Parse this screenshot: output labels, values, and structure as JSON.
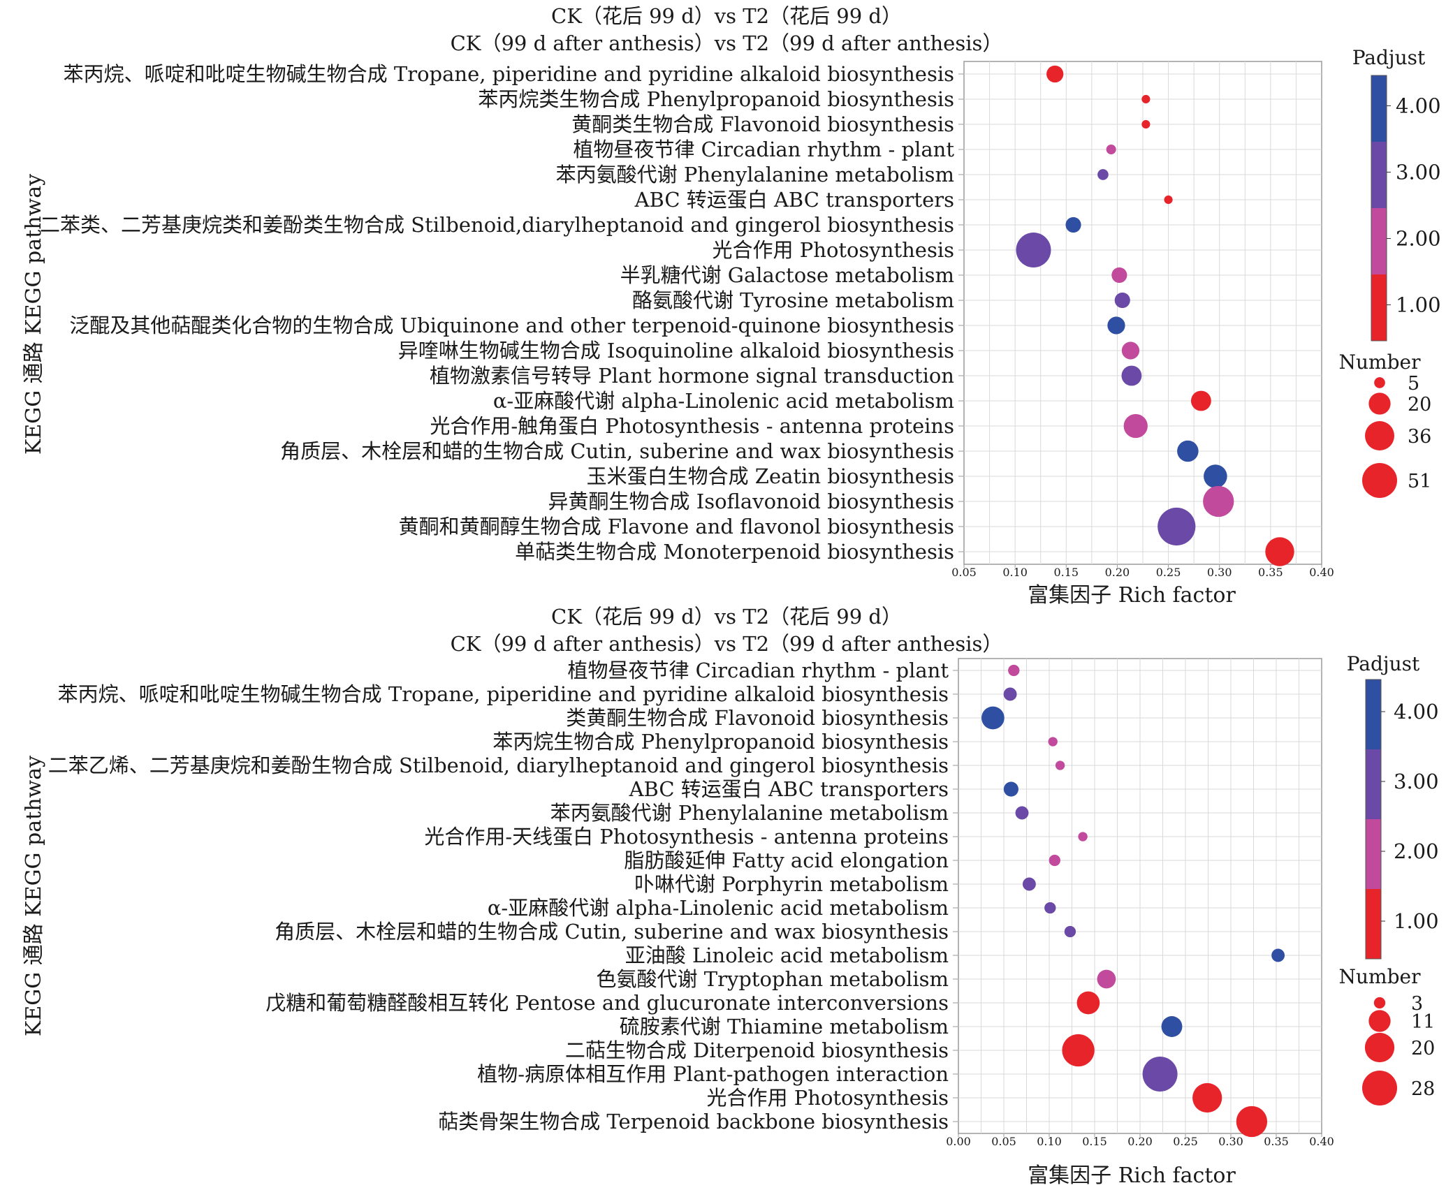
{
  "colors": {
    "low": "#e8242b",
    "mid_low": "#c24a9c",
    "mid_high": "#6a4aa6",
    "high": "#2f4fa3",
    "grid": "#d9d9d9",
    "frame": "#9a9a9a"
  },
  "chart_data": [
    {
      "type": "scatter",
      "title": "CK（花后 99 d）vs T2（花后 99 d）",
      "subtitle": "CK（99 d after anthesis）vs T2（99 d after anthesis）",
      "xlabel": "富集因子 Rich factor",
      "ylabel": "KEGG 通路 KEGG pathway",
      "xlim": [
        0.05,
        0.4
      ],
      "xticks": [
        "0.05",
        "0.10",
        "0.15",
        "0.20",
        "0.25",
        "0.30",
        "0.35",
        "0.40"
      ],
      "grid": true,
      "categories": [
        "苯丙烷、哌啶和吡啶生物碱生物合成 Tropane, piperidine and pyridine alkaloid biosynthesis",
        "苯丙烷类生物合成 Phenylpropanoid biosynthesis",
        "黄酮类生物合成 Flavonoid biosynthesis",
        "植物昼夜节律 Circadian rhythm - plant",
        "苯丙氨酸代谢 Phenylalanine metabolism",
        "ABC 转运蛋白 ABC transporters",
        "二苯类、二芳基庚烷类和姜酚类生物合成 Stilbenoid,diarylheptanoid and gingerol biosynthesis",
        "光合作用 Photosynthesis",
        "半乳糖代谢 Galactose metabolism",
        "酪氨酸代谢 Tyrosine metabolism",
        "泛醌及其他萜醌类化合物的生物合成 Ubiquinone and other terpenoid-quinone biosynthesis",
        "异喹啉生物碱生物合成 Isoquinoline alkaloid biosynthesis",
        "植物激素信号转导 Plant hormone signal transduction",
        "α-亚麻酸代谢 alpha-Linolenic acid metabolism",
        "光合作用-触角蛋白 Photosynthesis - antenna proteins",
        "角质层、木栓层和蜡的生物合成 Cutin, suberine and wax biosynthesis",
        "玉米蛋白生物合成 Zeatin biosynthesis",
        "异黄酮生物合成 Isoflavonoid biosynthesis",
        "黄酮和黄酮醇生物合成 Flavone and flavonol biosynthesis",
        "单萜类生物合成 Monoterpenoid biosynthesis"
      ],
      "points": [
        {
          "x": 0.139,
          "number": 12,
          "padjust": 0.8
        },
        {
          "x": 0.228,
          "number": 3,
          "padjust": 0.7
        },
        {
          "x": 0.228,
          "number": 3,
          "padjust": 0.7
        },
        {
          "x": 0.194,
          "number": 4,
          "padjust": 2.0
        },
        {
          "x": 0.186,
          "number": 5,
          "padjust": 3.1
        },
        {
          "x": 0.25,
          "number": 3,
          "padjust": 0.7
        },
        {
          "x": 0.157,
          "number": 10,
          "padjust": 4.2
        },
        {
          "x": 0.118,
          "number": 51,
          "padjust": 3.4
        },
        {
          "x": 0.202,
          "number": 10,
          "padjust": 2.2
        },
        {
          "x": 0.205,
          "number": 10,
          "padjust": 3.0
        },
        {
          "x": 0.199,
          "number": 13,
          "padjust": 4.0
        },
        {
          "x": 0.213,
          "number": 13,
          "padjust": 2.1
        },
        {
          "x": 0.214,
          "number": 17,
          "padjust": 3.2
        },
        {
          "x": 0.282,
          "number": 17,
          "padjust": 0.8
        },
        {
          "x": 0.218,
          "number": 24,
          "padjust": 2.2
        },
        {
          "x": 0.269,
          "number": 19,
          "padjust": 4.1
        },
        {
          "x": 0.296,
          "number": 23,
          "padjust": 4.2
        },
        {
          "x": 0.299,
          "number": 40,
          "padjust": 2.2
        },
        {
          "x": 0.258,
          "number": 60,
          "padjust": 3.4
        },
        {
          "x": 0.359,
          "number": 35,
          "padjust": 0.6
        }
      ],
      "legend": {
        "color_title": "Padjust",
        "color_ticks": [
          "4.00",
          "3.00",
          "2.00",
          "1.00"
        ],
        "size_title": "Number",
        "size_values": [
          5,
          20,
          36,
          51
        ],
        "size_labels": [
          "5",
          "20",
          "36",
          "51"
        ]
      }
    },
    {
      "type": "scatter",
      "title": "CK（花后 99 d）vs T2（花后 99 d）",
      "subtitle": "CK（99 d after anthesis）vs T2（99 d after anthesis）",
      "xlabel": "富集因子 Rich factor",
      "ylabel": "KEGG 通路 KEGG pathway",
      "xlim": [
        0.0,
        0.4
      ],
      "xticks": [
        "0.00",
        "0.05",
        "0.10",
        "0.15",
        "0.20",
        "0.25",
        "0.30",
        "0.35",
        "0.40"
      ],
      "grid": true,
      "categories": [
        "植物昼夜节律 Circadian rhythm - plant",
        "苯丙烷、哌啶和吡啶生物碱生物合成 Tropane, piperidine and pyridine alkaloid biosynthesis",
        "类黄酮生物合成 Flavonoid biosynthesis",
        "苯丙烷生物合成 Phenylpropanoid biosynthesis",
        "二苯乙烯、二芳基庚烷和姜酚生物合成 Stilbenoid, diarylheptanoid and gingerol biosynthesis",
        "ABC 转运蛋白 ABC transporters",
        "苯丙氨酸代谢 Phenylalanine metabolism",
        "光合作用-天线蛋白 Photosynthesis - antenna proteins",
        "脂肪酸延伸 Fatty acid elongation",
        "卟啉代谢 Porphyrin metabolism",
        "α-亚麻酸代谢 alpha-Linolenic acid metabolism",
        "角质层、木栓层和蜡的生物合成 Cutin, suberine and wax biosynthesis",
        "亚油酸 Linoleic acid metabolism",
        "色氨酸代谢 Tryptophan metabolism",
        "戊糖和葡萄糖醛酸相互转化 Pentose and glucuronate interconversions",
        "硫胺素代谢 Thiamine metabolism",
        "二萜生物合成 Diterpenoid biosynthesis",
        "植物-病原体相互作用 Plant-pathogen interaction",
        "光合作用 Photosynthesis",
        "萜类骨架生物合成 Terpenoid backbone biosynthesis"
      ],
      "points": [
        {
          "x": 0.061,
          "number": 3,
          "padjust": 2.2
        },
        {
          "x": 0.057,
          "number": 4,
          "padjust": 3.1
        },
        {
          "x": 0.038,
          "number": 12,
          "padjust": 4.2
        },
        {
          "x": 0.104,
          "number": 2,
          "padjust": 2.1
        },
        {
          "x": 0.112,
          "number": 2,
          "padjust": 2.1
        },
        {
          "x": 0.058,
          "number": 5,
          "padjust": 4.2
        },
        {
          "x": 0.07,
          "number": 4,
          "padjust": 3.1
        },
        {
          "x": 0.137,
          "number": 2,
          "padjust": 2.1
        },
        {
          "x": 0.106,
          "number": 3,
          "padjust": 2.1
        },
        {
          "x": 0.078,
          "number": 4,
          "padjust": 3.1
        },
        {
          "x": 0.101,
          "number": 3,
          "padjust": 3.1
        },
        {
          "x": 0.123,
          "number": 3,
          "padjust": 3.1
        },
        {
          "x": 0.352,
          "number": 4,
          "padjust": 4.2
        },
        {
          "x": 0.163,
          "number": 8,
          "padjust": 2.2
        },
        {
          "x": 0.143,
          "number": 12,
          "padjust": 0.7
        },
        {
          "x": 0.235,
          "number": 10,
          "padjust": 3.5
        },
        {
          "x": 0.132,
          "number": 24,
          "padjust": 0.7
        },
        {
          "x": 0.222,
          "number": 28,
          "padjust": 2.5
        },
        {
          "x": 0.274,
          "number": 20,
          "padjust": 0.7
        },
        {
          "x": 0.323,
          "number": 22,
          "padjust": 0.7
        }
      ],
      "legend": {
        "color_title": "Padjust",
        "color_ticks": [
          "4.00",
          "3.00",
          "2.00",
          "1.00"
        ],
        "size_title": "Number",
        "size_values": [
          3,
          11,
          20,
          28
        ],
        "size_labels": [
          "3",
          "11",
          "20",
          "28"
        ]
      }
    }
  ]
}
